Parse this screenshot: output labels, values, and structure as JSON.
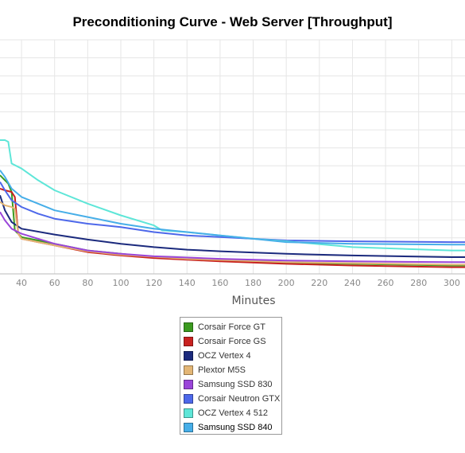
{
  "chart_data": {
    "type": "line",
    "title": "Preconditioning Curve - Web Server [Throughput]",
    "xlabel": "Minutes",
    "ylabel": "",
    "xlim": [
      27,
      308
    ],
    "ylim": [
      0,
      14
    ],
    "x_ticks": [
      40,
      60,
      80,
      100,
      120,
      140,
      160,
      180,
      200,
      220,
      240,
      260,
      280,
      300
    ],
    "grid": true,
    "legend_position": "bottom-center",
    "series": [
      {
        "name": "Corsair Force GT",
        "color": "#3b9a1f",
        "x": [
          27,
          30,
          32,
          34,
          36,
          40,
          50,
          60,
          80,
          100,
          120,
          160,
          200,
          240,
          300,
          308
        ],
        "y": [
          5.9,
          5.6,
          5.4,
          4.9,
          2.6,
          2.2,
          2.0,
          1.8,
          1.4,
          1.2,
          1.0,
          0.8,
          0.65,
          0.6,
          0.5,
          0.5
        ]
      },
      {
        "name": "Corsair Force GS",
        "color": "#c8211f",
        "x": [
          27,
          30,
          34,
          36,
          38,
          40,
          50,
          60,
          80,
          100,
          120,
          160,
          200,
          240,
          300,
          308
        ],
        "y": [
          5.1,
          5.0,
          4.9,
          4.6,
          2.4,
          2.1,
          1.9,
          1.7,
          1.3,
          1.1,
          0.95,
          0.75,
          0.6,
          0.5,
          0.4,
          0.4
        ]
      },
      {
        "name": "OCZ Vertex 4",
        "color": "#1b2a7d",
        "x": [
          27,
          30,
          34,
          40,
          60,
          80,
          100,
          120,
          140,
          160,
          200,
          240,
          300,
          308
        ],
        "y": [
          4.7,
          3.8,
          3.1,
          2.7,
          2.35,
          2.05,
          1.8,
          1.6,
          1.45,
          1.35,
          1.2,
          1.1,
          1.0,
          1.0
        ]
      },
      {
        "name": "Plextor M5S",
        "color": "#e3b676",
        "x": [
          27,
          30,
          34,
          36,
          38,
          40,
          60,
          80,
          100,
          140,
          200,
          300,
          308
        ],
        "y": [
          4.3,
          4.1,
          4.0,
          3.9,
          2.4,
          2.1,
          1.7,
          1.35,
          1.15,
          0.9,
          0.7,
          0.55,
          0.55
        ]
      },
      {
        "name": "Samsung SSD 830",
        "color": "#9a45d9",
        "x": [
          27,
          30,
          34,
          40,
          60,
          80,
          100,
          120,
          160,
          200,
          240,
          300,
          308
        ],
        "y": [
          3.7,
          3.2,
          2.7,
          2.4,
          1.8,
          1.4,
          1.2,
          1.05,
          0.9,
          0.8,
          0.75,
          0.7,
          0.7
        ]
      },
      {
        "name": "Corsair Neutron GTX",
        "color": "#4d68ea",
        "x": [
          27,
          30,
          34,
          40,
          50,
          60,
          80,
          100,
          120,
          140,
          160,
          180,
          200,
          240,
          300,
          308
        ],
        "y": [
          5.5,
          5.0,
          4.4,
          4.0,
          3.6,
          3.3,
          3.0,
          2.8,
          2.5,
          2.3,
          2.2,
          2.1,
          2.0,
          1.95,
          1.9,
          1.9
        ]
      },
      {
        "name": "OCZ Vertex 4 512",
        "color": "#5ee6d8",
        "x": [
          27,
          30,
          32,
          34,
          40,
          50,
          60,
          80,
          100,
          120,
          125,
          140,
          160,
          180,
          200,
          240,
          300,
          308
        ],
        "y": [
          8.0,
          8.0,
          7.9,
          6.6,
          6.3,
          5.6,
          5.0,
          4.2,
          3.5,
          2.9,
          2.6,
          2.5,
          2.3,
          2.1,
          1.95,
          1.6,
          1.4,
          1.4
        ]
      },
      {
        "name": "Samsung SSD 840",
        "color": "#46aee8",
        "x": [
          27,
          30,
          34,
          40,
          50,
          60,
          80,
          100,
          120,
          140,
          160,
          180,
          200,
          240,
          300,
          308
        ],
        "y": [
          6.2,
          5.8,
          5.1,
          4.6,
          4.2,
          3.8,
          3.4,
          3.0,
          2.7,
          2.5,
          2.3,
          2.1,
          1.9,
          1.8,
          1.75,
          1.75
        ]
      }
    ]
  }
}
